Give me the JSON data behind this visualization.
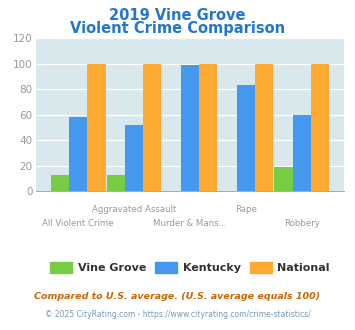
{
  "title_line1": "2019 Vine Grove",
  "title_line2": "Violent Crime Comparison",
  "categories_top": [
    "Aggravated Assault",
    "Rape"
  ],
  "categories_bottom": [
    "All Violent Crime",
    "Murder & Mans...",
    "Robbery"
  ],
  "vine_grove": [
    13,
    13,
    0,
    0,
    19
  ],
  "kentucky": [
    58,
    52,
    99,
    83,
    60
  ],
  "national": [
    100,
    100,
    100,
    100,
    100
  ],
  "color_vine_grove": "#77cc44",
  "color_kentucky": "#4499ee",
  "color_national": "#ffaa33",
  "ylim": [
    0,
    120
  ],
  "yticks": [
    0,
    20,
    40,
    60,
    80,
    100,
    120
  ],
  "background_color": "#d9e8ed",
  "legend_labels": [
    "Vine Grove",
    "Kentucky",
    "National"
  ],
  "footnote1": "Compared to U.S. average. (U.S. average equals 100)",
  "footnote2": "© 2025 CityRating.com - https://www.cityrating.com/crime-statistics/",
  "title_color": "#2277cc",
  "footnote1_color": "#cc6600",
  "footnote2_color": "#7799bb",
  "xlabel_color": "#999999",
  "tick_color": "#999999",
  "grid_color": "#c5d8de"
}
